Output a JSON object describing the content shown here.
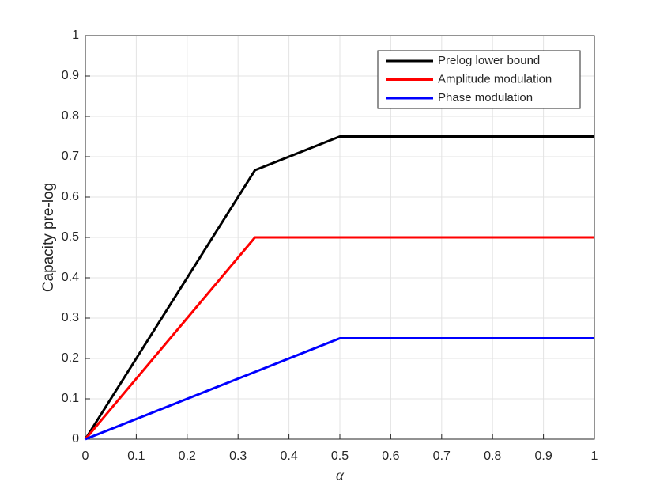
{
  "chart_data": {
    "type": "line",
    "x_label": "α",
    "y_label": "Capacity pre-log",
    "x": [
      0,
      0.3333,
      0.5,
      1
    ],
    "series": [
      {
        "name": "Prelog lower bound",
        "color": "#000000",
        "values": [
          0,
          0.6667,
          0.75,
          0.75
        ]
      },
      {
        "name": "Amplitude modulation",
        "color": "#ff0000",
        "values": [
          0,
          0.5,
          0.5,
          0.5
        ]
      },
      {
        "name": "Phase modulation",
        "color": "#0000ff",
        "values": [
          0,
          0.1667,
          0.25,
          0.25
        ]
      }
    ],
    "xlim": [
      0,
      1
    ],
    "ylim": [
      0,
      1
    ],
    "xticks": [
      0,
      0.1,
      0.2,
      0.3,
      0.4,
      0.5,
      0.6,
      0.7,
      0.8,
      0.9,
      1
    ],
    "yticks": [
      0,
      0.1,
      0.2,
      0.3,
      0.4,
      0.5,
      0.6,
      0.7,
      0.8,
      0.9,
      1
    ],
    "grid": true,
    "legend": "top-right"
  }
}
